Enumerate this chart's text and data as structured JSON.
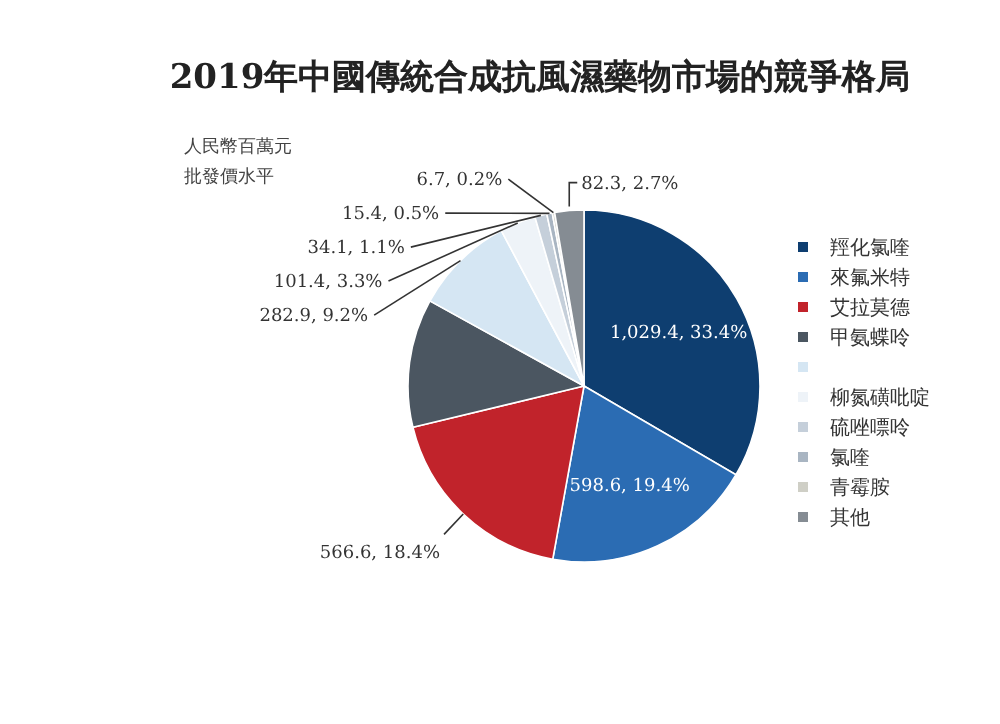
{
  "chart_data": {
    "type": "pie",
    "title": "2019年中國傳統合成抗風濕藥物市場的競爭格局",
    "annotations": [
      "人民幣百萬元",
      "批發價水平"
    ],
    "categories": [
      "羥化氯喹",
      "來氟米特",
      "艾拉莫德",
      "甲氨蝶呤",
      null,
      "柳氮磺吡啶",
      "硫唑嘌呤",
      "氯喹",
      "青霉胺",
      "其他"
    ],
    "values": [
      1029.4,
      598.6,
      566.6,
      363.6,
      282.9,
      101.4,
      34.1,
      15.4,
      6.7,
      82.3
    ],
    "value_labels": [
      "1,029.4, 33.4%",
      "598.6, 19.4%",
      "566.6, 18.4%",
      null,
      "282.9, 9.2%",
      "101.4, 3.3%",
      "34.1, 1.1%",
      "15.4, 0.5%",
      "6.7, 0.2%",
      "82.3, 2.7%"
    ],
    "colors": [
      "#0e3e70",
      "#2b6cb3",
      "#c1232b",
      "#4b5661",
      "#d5e6f3",
      "#eef3f8",
      "#c5cfda",
      "#a9b5c2",
      "#cfcfc6",
      "#858c93"
    ],
    "legend": "right"
  }
}
